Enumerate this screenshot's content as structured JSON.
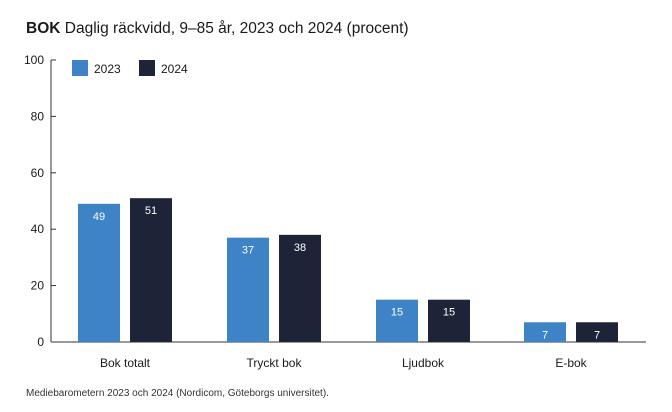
{
  "title_bold": "BOK",
  "title_rest": "Daglig räckvidd, 9–85 år, 2023 och 2024 (procent)",
  "source": "Mediebarometern 2023 och 2024 (Nordicom, Göteborgs universitet).",
  "colors": {
    "2023": "#3d83c6",
    "2024": "#1e2438",
    "axis": "#333333",
    "label": "#ffffff"
  },
  "chart_data": {
    "type": "bar",
    "title": "BOK Daglig räckvidd, 9–85 år, 2023 och 2024 (procent)",
    "categories": [
      "Bok totalt",
      "Tryckt bok",
      "Ljudbok",
      "E-bok"
    ],
    "series": [
      {
        "name": "2023",
        "values": [
          49,
          37,
          15,
          7
        ]
      },
      {
        "name": "2024",
        "values": [
          51,
          38,
          15,
          7
        ]
      }
    ],
    "ylim": [
      0,
      100
    ],
    "yticks": [
      0,
      20,
      40,
      60,
      80,
      100
    ],
    "grid": false,
    "legend": "top-left",
    "data_labels": true
  }
}
